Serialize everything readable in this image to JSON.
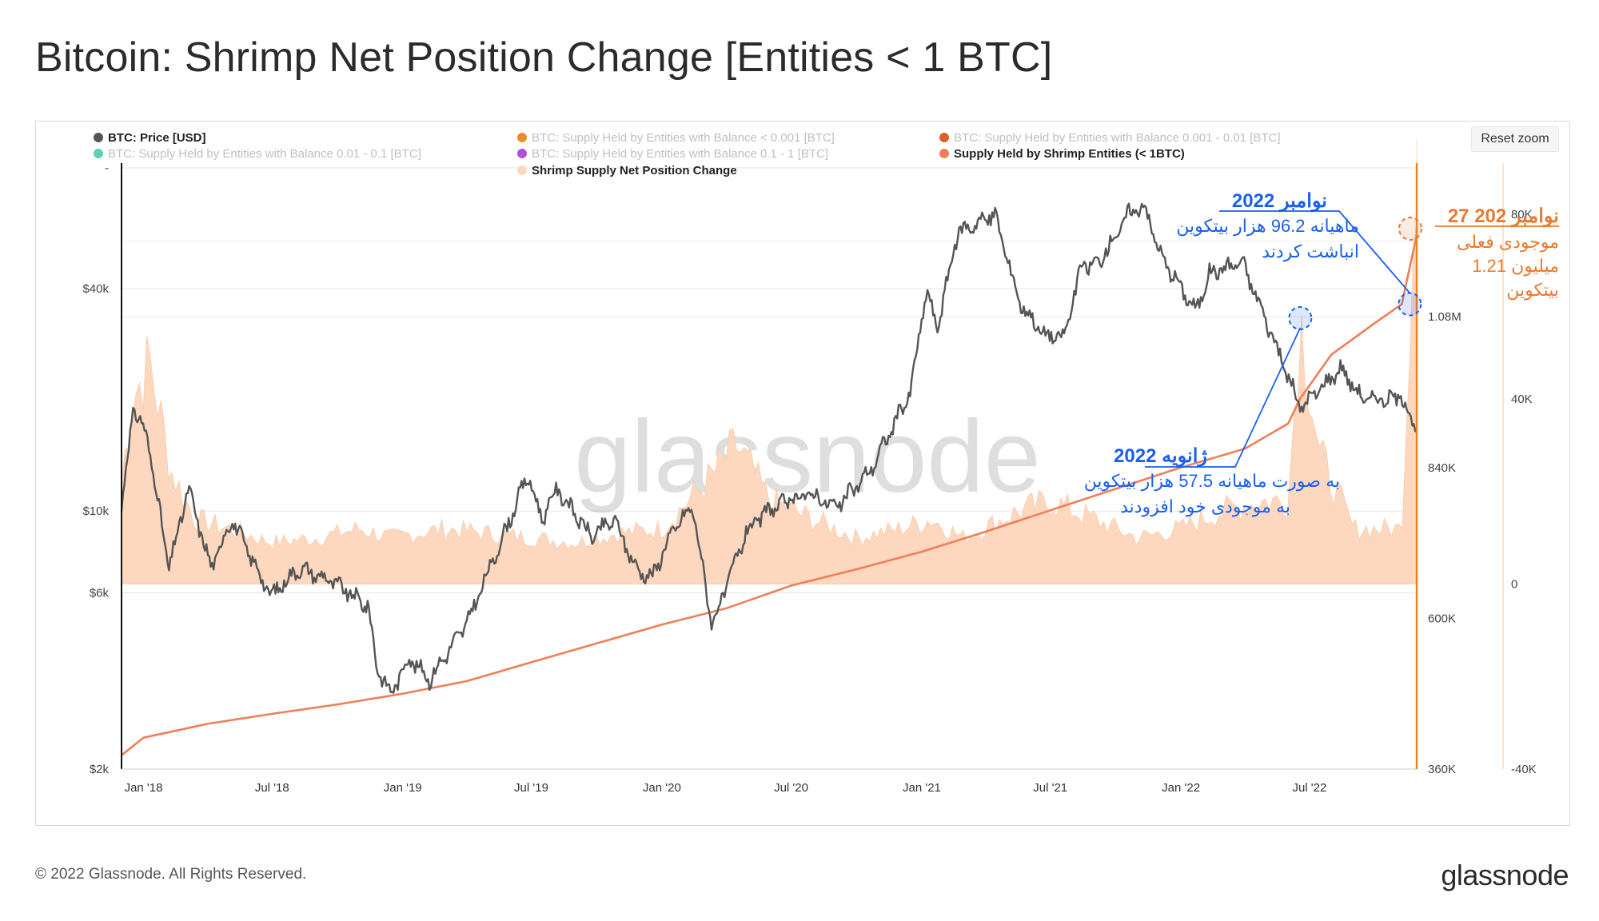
{
  "title": "Bitcoin: Shrimp Net Position Change [Entities < 1 BTC]",
  "reset_zoom": "Reset zoom",
  "copyright": "© 2022 Glassnode. All Rights Reserved.",
  "brand": "glassnode",
  "watermark": "glassnode",
  "colors": {
    "price": "#555555",
    "supply": "#ef7f57",
    "net_change": "#fdd8bf",
    "annotation_blue": "#1a5ff0",
    "annotation_orange": "#e97a2f",
    "legend_lt001": "#f08a27",
    "legend_001_01": "#d9622b",
    "legend_01_1": "#5ed1b2",
    "legend_01_1b": "#b14fd6"
  },
  "chart_data": {
    "type": "line",
    "legend": [
      {
        "label": "BTC: Price [USD]",
        "color": "#555555",
        "active": true
      },
      {
        "label": "BTC: Supply Held by Entities with Balance < 0.001 [BTC]",
        "color": "#f08a27",
        "active": false
      },
      {
        "label": "BTC: Supply Held by Entities with Balance 0.001 - 0.01 [BTC]",
        "color": "#d9622b",
        "active": false
      },
      {
        "label": "BTC: Supply Held by Entities with Balance 0.01 - 0.1 [BTC]",
        "color": "#5ed1b2",
        "active": false
      },
      {
        "label": "BTC: Supply Held by Entities with Balance 0.1 - 1 [BTC]",
        "color": "#b14fd6",
        "active": false
      },
      {
        "label": "Supply Held by Shrimp Entities (< 1BTC)",
        "color": "#ef7f57",
        "active": true
      },
      {
        "label": "Shrimp Supply Net Position Change",
        "color": "#fdd8bf",
        "active": true
      }
    ],
    "x_ticks": [
      "Jan '18",
      "Jul '18",
      "Jan '19",
      "Jul '19",
      "Jan '20",
      "Jul '20",
      "Jan '21",
      "Jul '21",
      "Jan '22",
      "Jul '22"
    ],
    "x_range": [
      "2017-12-01",
      "2022-11-29"
    ],
    "y_price": {
      "scale": "log",
      "ticks": [
        "$2k",
        "$6k",
        "$10k",
        "$40k"
      ],
      "tick_values": [
        2000,
        6000,
        10000,
        40000
      ],
      "range": [
        2000,
        85000
      ],
      "top_tick": "-"
    },
    "y_supply": {
      "ticks": [
        "360K",
        "600K",
        "840K",
        "1.08M"
      ],
      "tick_values": [
        360000,
        600000,
        840000,
        1080000
      ],
      "range": [
        360000,
        1317000
      ]
    },
    "y_net": {
      "ticks": [
        "-40K",
        "0",
        "40K",
        "80K"
      ],
      "tick_values": [
        -40000,
        0,
        40000,
        80000
      ],
      "range": [
        -40000,
        90000
      ]
    },
    "series_price": {
      "name": "BTC: Price [USD]",
      "x": [
        "2017-12-01",
        "2017-12-17",
        "2018-01-06",
        "2018-02-06",
        "2018-03-05",
        "2018-04-06",
        "2018-05-05",
        "2018-06-29",
        "2018-08-08",
        "2018-09-20",
        "2018-11-14",
        "2018-11-25",
        "2018-12-15",
        "2019-01-10",
        "2019-02-08",
        "2019-04-02",
        "2019-05-14",
        "2019-06-26",
        "2019-07-16",
        "2019-08-06",
        "2019-09-24",
        "2019-10-26",
        "2019-11-25",
        "2019-12-18",
        "2020-01-14",
        "2020-02-13",
        "2020-03-12",
        "2020-04-29",
        "2020-06-01",
        "2020-07-27",
        "2020-09-03",
        "2020-10-21",
        "2020-12-16",
        "2021-01-08",
        "2021-01-22",
        "2021-02-21",
        "2021-04-14",
        "2021-05-19",
        "2021-06-22",
        "2021-07-20",
        "2021-08-14",
        "2021-09-07",
        "2021-10-20",
        "2021-11-10",
        "2021-12-04",
        "2022-01-22",
        "2022-02-10",
        "2022-03-28",
        "2022-05-09",
        "2022-06-18",
        "2022-08-14",
        "2022-09-13",
        "2022-10-25",
        "2022-11-08",
        "2022-11-29"
      ],
      "y": [
        10000,
        19000,
        16000,
        7000,
        11500,
        7000,
        9500,
        5900,
        7000,
        6500,
        5500,
        3800,
        3200,
        4000,
        3500,
        5000,
        7800,
        12500,
        9500,
        11500,
        8500,
        9500,
        7000,
        6600,
        8700,
        10300,
        4900,
        8800,
        10100,
        11200,
        10200,
        12900,
        21000,
        40000,
        31000,
        57000,
        63500,
        36700,
        30000,
        29500,
        46000,
        46900,
        64200,
        67500,
        49000,
        34800,
        44000,
        47400,
        30000,
        19000,
        24400,
        20200,
        20100,
        20500,
        16400
      ]
    },
    "series_supply": {
      "name": "Supply Held by Shrimp Entities (< 1BTC)",
      "x": [
        "2017-12-01",
        "2018-01-01",
        "2018-04-01",
        "2018-07-01",
        "2018-10-01",
        "2019-01-01",
        "2019-04-01",
        "2019-07-01",
        "2019-10-01",
        "2020-01-01",
        "2020-04-01",
        "2020-07-01",
        "2020-10-01",
        "2021-01-01",
        "2021-04-01",
        "2021-07-01",
        "2021-10-01",
        "2022-01-01",
        "2022-04-01",
        "2022-06-01",
        "2022-06-18",
        "2022-08-01",
        "2022-10-01",
        "2022-11-08",
        "2022-11-29"
      ],
      "y": [
        382000,
        410000,
        432000,
        448000,
        463000,
        480000,
        500000,
        530000,
        560000,
        590000,
        616000,
        652000,
        678000,
        706000,
        738000,
        772000,
        806000,
        840000,
        870000,
        910000,
        950000,
        1020000,
        1070000,
        1100000,
        1210000
      ]
    },
    "series_net_change": {
      "name": "Shrimp Supply Net Position Change",
      "x": [
        "2017-12-01",
        "2017-12-15",
        "2018-01-10",
        "2018-02-10",
        "2018-03-15",
        "2018-05-01",
        "2018-07-01",
        "2018-09-01",
        "2018-11-01",
        "2018-12-15",
        "2019-03-01",
        "2019-05-01",
        "2019-07-01",
        "2019-09-01",
        "2019-11-01",
        "2020-01-01",
        "2020-03-15",
        "2020-04-15",
        "2020-06-01",
        "2020-08-01",
        "2020-10-01",
        "2020-12-01",
        "2021-01-15",
        "2021-03-01",
        "2021-05-20",
        "2021-07-01",
        "2021-09-01",
        "2021-11-01",
        "2022-01-01",
        "2022-03-01",
        "2022-05-01",
        "2022-06-01",
        "2022-06-18",
        "2022-07-15",
        "2022-09-01",
        "2022-10-15",
        "2022-11-08",
        "2022-11-29"
      ],
      "y": [
        22000,
        40000,
        48000,
        24000,
        14000,
        12000,
        9000,
        10000,
        12000,
        10000,
        12000,
        11000,
        10000,
        9000,
        11000,
        12000,
        24000,
        30000,
        18000,
        14000,
        10000,
        12000,
        14000,
        10000,
        16000,
        18000,
        14000,
        10000,
        12000,
        16000,
        18000,
        18000,
        57500,
        28000,
        12000,
        12000,
        12000,
        96200
      ]
    },
    "annotations": [
      {
        "id": "jan2022",
        "date": "2022-06-18",
        "lines": [
          "ژانویه 2022",
          "به صورت ماهیانه 57.5 هزار بیتکوین",
          "به موجودی خود افزودند"
        ]
      },
      {
        "id": "nov2022",
        "date": "2022-11-08",
        "lines": [
          "نوامبر 2022",
          "ماهیانه 96.2 هزار بیتکوین",
          "انباشت کردند"
        ]
      },
      {
        "id": "current",
        "date": "2022-11-27",
        "lines": [
          "27 نوامبر 202",
          "موجودی فعلی",
          "1.21 میلیون",
          "بیتکوین"
        ]
      }
    ]
  }
}
